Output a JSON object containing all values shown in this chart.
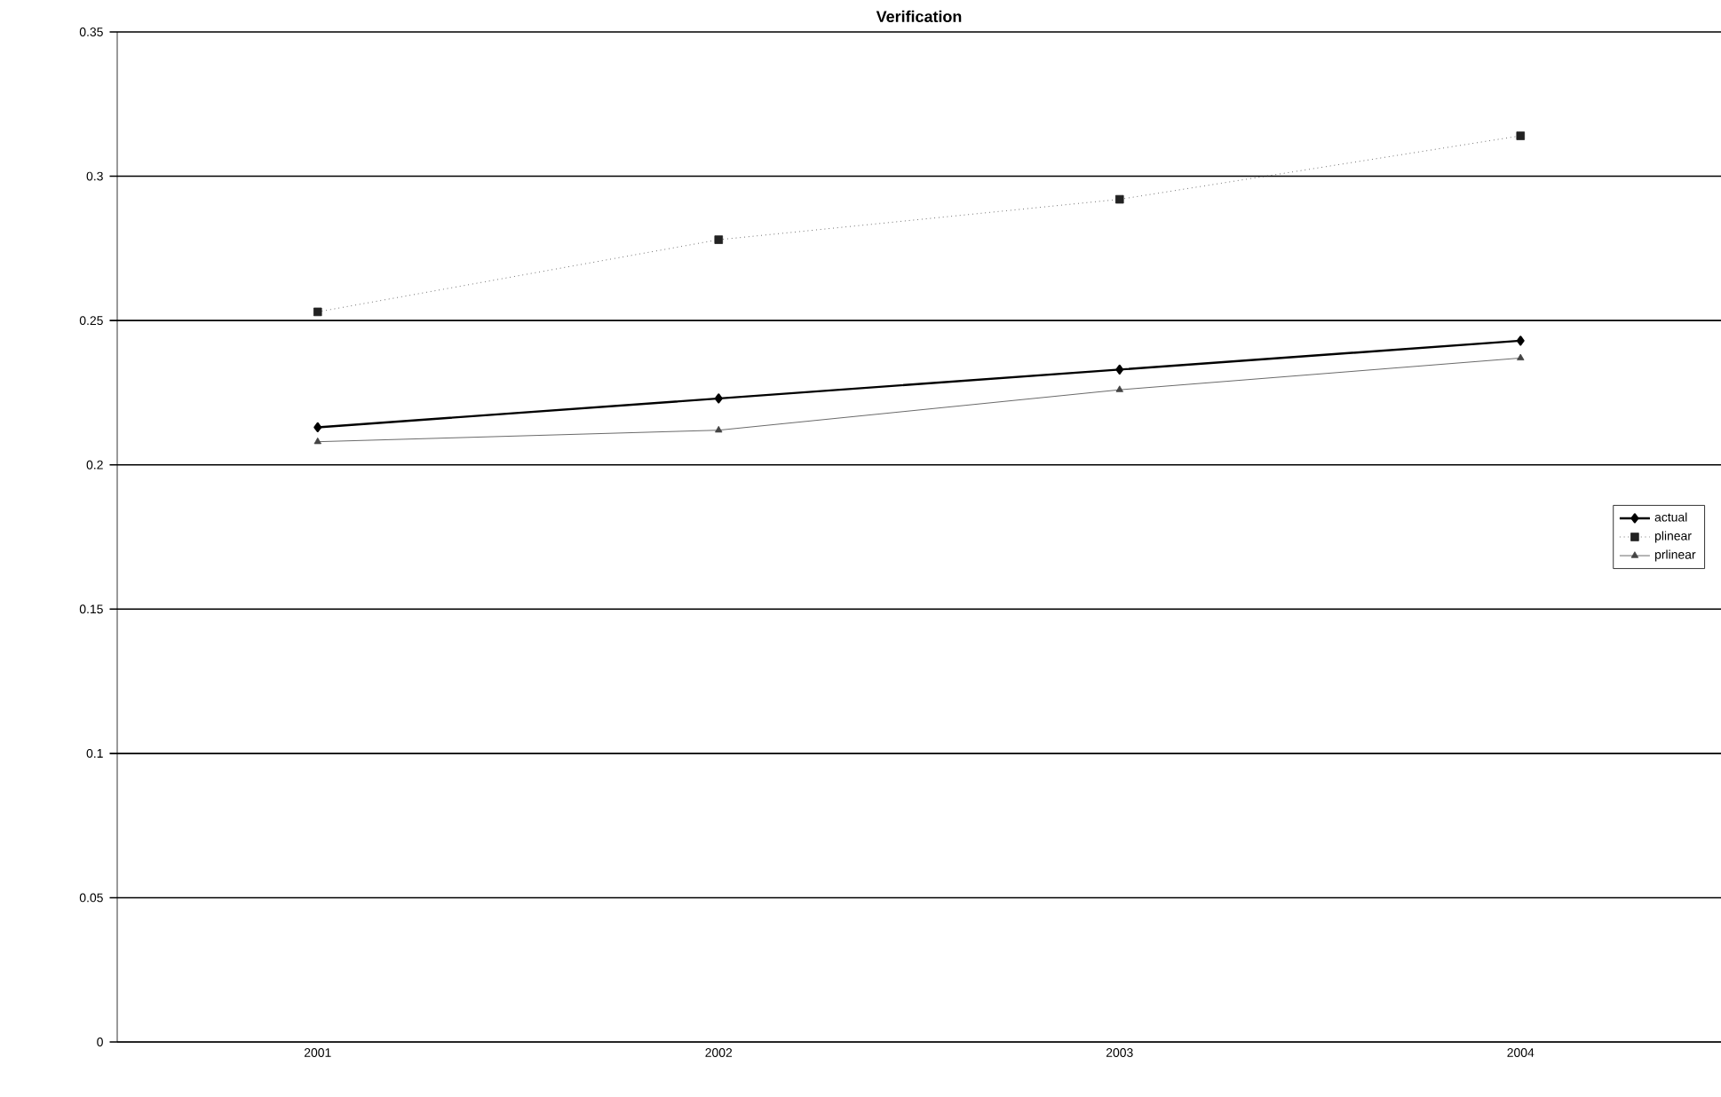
{
  "chart_data": {
    "type": "line",
    "title": "Verification",
    "categories": [
      "2001",
      "2002",
      "2003",
      "2004"
    ],
    "series": [
      {
        "name": "actual",
        "color": "#000000",
        "values": [
          0.213,
          0.223,
          0.233,
          0.243
        ],
        "marker": "diamond",
        "line_style": "solid"
      },
      {
        "name": "plinear",
        "color": "#222222",
        "values": [
          0.253,
          0.278,
          0.292,
          0.314
        ],
        "marker": "square",
        "line_style": "dotted"
      },
      {
        "name": "prlinear",
        "color": "#444444",
        "values": [
          0.208,
          0.212,
          0.226,
          0.237
        ],
        "marker": "triangle",
        "line_style": "solid"
      }
    ],
    "ylim": [
      0,
      0.35
    ],
    "yticks": [
      0,
      0.05,
      0.1,
      0.15,
      0.2,
      0.25,
      0.3,
      0.35
    ],
    "grid": "y",
    "legend": "right"
  }
}
